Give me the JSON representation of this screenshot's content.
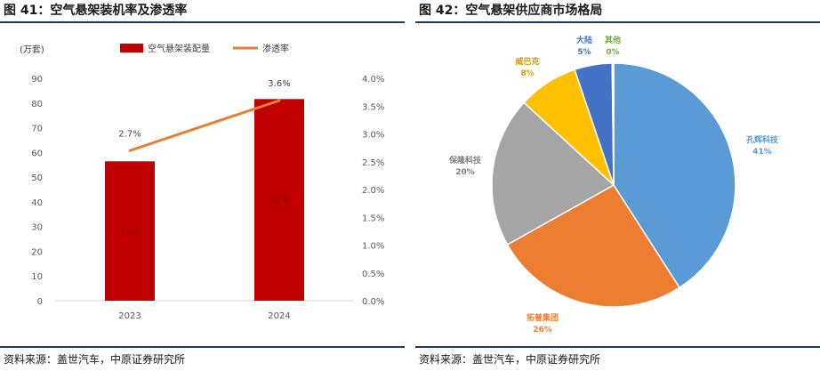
{
  "left": {
    "title": "图 41：空气悬架装机率及渗透率",
    "source": "资料来源：盖世汽车，中原证券研究所"
  },
  "right": {
    "title": "图 42：空气悬架供应商市场格局",
    "source": "资料来源：盖世汽车，中原证券研究所"
  },
  "chart_data": [
    {
      "type": "bar",
      "ylabel": "(万套)",
      "categories": [
        "2023",
        "2024"
      ],
      "ylim": [
        0,
        90
      ],
      "y_ticks": [
        "0",
        "10",
        "20",
        "30",
        "40",
        "50",
        "60",
        "70",
        "80",
        "90"
      ],
      "y2lim": [
        0,
        4.0
      ],
      "y2_ticks": [
        "0.0%",
        "0.5%",
        "1.0%",
        "1.5%",
        "2.0%",
        "2.5%",
        "3.0%",
        "3.5%",
        "4.0%"
      ],
      "series": [
        {
          "name": "空气悬架装配量",
          "kind": "bar",
          "color": "#c00000",
          "values": [
            56.4,
            81.6
          ],
          "labels": [
            "56.4",
            "81.6"
          ]
        },
        {
          "name": "渗透率",
          "kind": "line",
          "axis": "right",
          "color": "#ed7d31",
          "values": [
            2.7,
            3.6
          ],
          "labels": [
            "2.7%",
            "3.6%"
          ]
        }
      ],
      "legend_placement": "top"
    },
    {
      "type": "pie",
      "slices": [
        {
          "label": "孔辉科技",
          "value": 41,
          "text": "41%",
          "color": "#5b9bd5"
        },
        {
          "label": "拓普集团",
          "value": 26,
          "text": "26%",
          "color": "#ed7d31"
        },
        {
          "label": "保隆科技",
          "value": 20,
          "text": "20%",
          "color": "#a5a5a5"
        },
        {
          "label": "威巴克",
          "value": 8,
          "text": "8%",
          "color": "#ffc000"
        },
        {
          "label": "大陆",
          "value": 5,
          "text": "5%",
          "color": "#4472c4"
        },
        {
          "label": "其他",
          "value": 0.2,
          "text": "0%",
          "color": "#70ad47"
        }
      ]
    }
  ]
}
